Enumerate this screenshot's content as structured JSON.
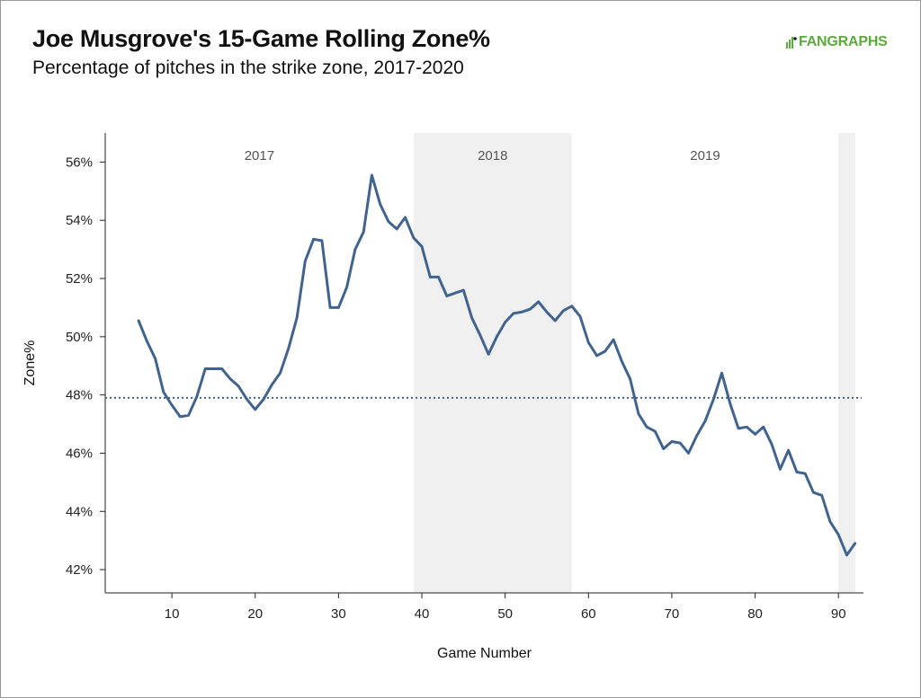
{
  "header": {
    "title": "Joe Musgrove's 15-Game Rolling Zone%",
    "subtitle": "Percentage of pitches in the strike zone, 2017-2020",
    "logo_text": "FANGRAPHS",
    "logo_color": "#5cab3c"
  },
  "chart_data": {
    "type": "line",
    "title": "Joe Musgrove's 15-Game Rolling Zone%",
    "subtitle": "Percentage of pitches in the strike zone, 2017-2020",
    "xlabel": "Game Number",
    "ylabel": "Zone%",
    "xlim": [
      2,
      93
    ],
    "ylim": [
      41.2,
      57.0
    ],
    "x_ticks": [
      10,
      20,
      30,
      40,
      50,
      60,
      70,
      80,
      90
    ],
    "y_ticks": [
      42,
      44,
      46,
      48,
      50,
      52,
      54,
      56
    ],
    "y_tick_labels": [
      "42%",
      "44%",
      "46%",
      "48%",
      "50%",
      "52%",
      "54%",
      "56%"
    ],
    "line_color": "#41648f",
    "reference_line": {
      "y": 47.9,
      "style": "dotted",
      "color": "#41648f"
    },
    "seasons": [
      {
        "label": "2017",
        "x_start": 2,
        "x_end": 39,
        "shaded": false
      },
      {
        "label": "2018",
        "x_start": 39,
        "x_end": 58,
        "shaded": true
      },
      {
        "label": "2019",
        "x_start": 58,
        "x_end": 90,
        "shaded": false
      },
      {
        "label": "",
        "x_start": 90,
        "x_end": 92,
        "shaded": true
      }
    ],
    "shade_color": "#f0f0f0",
    "grid": false,
    "series": [
      {
        "x": [
          6,
          7,
          8,
          9,
          10,
          11,
          12,
          13,
          14,
          15,
          16,
          17,
          18,
          19,
          20,
          21,
          22,
          23,
          24,
          25,
          26,
          27,
          28,
          29,
          30,
          31,
          32,
          33,
          34,
          35,
          36,
          37,
          38,
          39,
          40,
          41,
          42,
          43,
          44,
          45,
          46,
          47,
          48,
          49,
          50,
          51,
          52,
          53,
          54,
          55,
          56,
          57,
          58,
          59,
          60,
          61,
          62,
          63,
          64,
          65,
          66,
          67,
          68,
          69,
          70,
          71,
          72,
          73,
          74,
          75,
          76,
          77,
          78,
          79,
          80,
          81,
          82,
          83,
          84,
          85,
          86,
          87,
          88,
          89,
          90,
          91,
          92
        ],
        "y": [
          50.55,
          49.85,
          49.25,
          48.1,
          47.65,
          47.25,
          47.3,
          47.95,
          48.9,
          48.9,
          48.9,
          48.55,
          48.3,
          47.85,
          47.5,
          47.85,
          48.35,
          48.75,
          49.6,
          50.65,
          52.6,
          53.35,
          53.3,
          51.0,
          51.0,
          51.7,
          53.0,
          53.6,
          55.55,
          54.55,
          53.95,
          53.7,
          54.1,
          53.4,
          53.1,
          52.05,
          52.05,
          51.4,
          51.5,
          51.6,
          50.65,
          50.05,
          49.4,
          50.0,
          50.5,
          50.8,
          50.85,
          50.95,
          51.2,
          50.85,
          50.55,
          50.9,
          51.05,
          50.7,
          49.8,
          49.35,
          49.5,
          49.9,
          49.15,
          48.55,
          47.35,
          46.9,
          46.75,
          46.15,
          46.4,
          46.35,
          46.0,
          46.6,
          47.1,
          47.85,
          48.75,
          47.7,
          46.85,
          46.9,
          46.65,
          46.9,
          46.3,
          45.45,
          46.1,
          45.35,
          45.3,
          44.65,
          44.55,
          43.65,
          43.2,
          42.5,
          42.9
        ]
      }
    ]
  }
}
